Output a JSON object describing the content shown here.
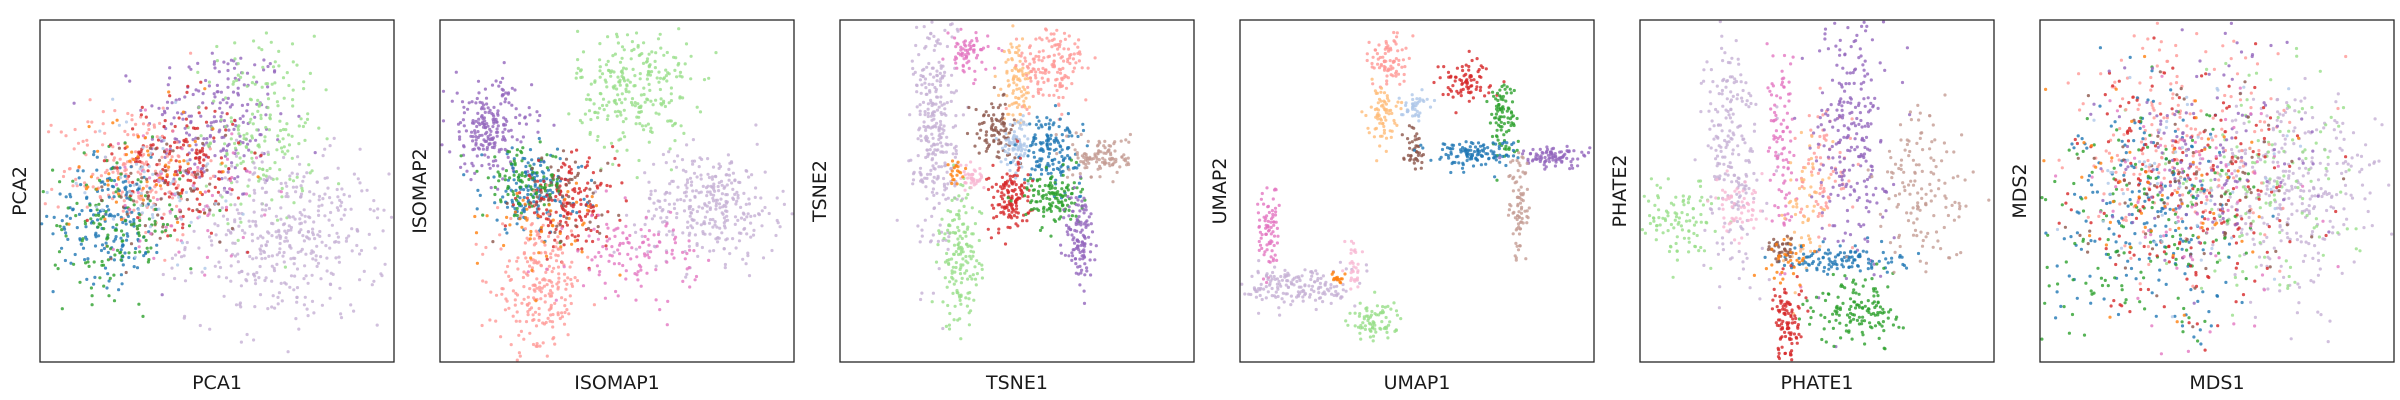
{
  "figure": {
    "palette": [
      "#1f77b4",
      "#aec7e8",
      "#ff7f0e",
      "#ffbb78",
      "#2ca02c",
      "#98df8a",
      "#d62728",
      "#ff9896",
      "#9467bd",
      "#c5b0d5",
      "#8c564b",
      "#c49c94",
      "#e377c2",
      "#f7b6d2"
    ]
  },
  "chart_data": [
    {
      "type": "scatter",
      "method": "PCA",
      "xlabel": "PCA1",
      "ylabel": "PCA2",
      "ticks": "none",
      "grid": false,
      "legend": "none",
      "xlim": [
        0,
        1
      ],
      "ylim": [
        0,
        1
      ],
      "clusters": [
        {
          "color": "#9467bd",
          "cx": 0.5,
          "cy": 0.7,
          "sx": 0.1,
          "sy": 0.12,
          "n": 220
        },
        {
          "color": "#98df8a",
          "cx": 0.62,
          "cy": 0.68,
          "sx": 0.08,
          "sy": 0.14,
          "n": 200
        },
        {
          "color": "#c5b0d5",
          "cx": 0.7,
          "cy": 0.36,
          "sx": 0.14,
          "sy": 0.12,
          "n": 420
        },
        {
          "color": "#ff9896",
          "cx": 0.26,
          "cy": 0.56,
          "sx": 0.1,
          "sy": 0.1,
          "n": 200
        },
        {
          "color": "#1f77b4",
          "cx": 0.2,
          "cy": 0.42,
          "sx": 0.08,
          "sy": 0.09,
          "n": 180
        },
        {
          "color": "#2ca02c",
          "cx": 0.22,
          "cy": 0.4,
          "sx": 0.09,
          "sy": 0.1,
          "n": 140
        },
        {
          "color": "#d62728",
          "cx": 0.4,
          "cy": 0.58,
          "sx": 0.09,
          "sy": 0.09,
          "n": 160
        },
        {
          "color": "#ff7f0e",
          "cx": 0.3,
          "cy": 0.55,
          "sx": 0.11,
          "sy": 0.1,
          "n": 60
        },
        {
          "color": "#8c564b",
          "cx": 0.36,
          "cy": 0.5,
          "sx": 0.1,
          "sy": 0.09,
          "n": 60
        },
        {
          "color": "#e377c2",
          "cx": 0.4,
          "cy": 0.5,
          "sx": 0.11,
          "sy": 0.1,
          "n": 60
        },
        {
          "color": "#aec7e8",
          "cx": 0.32,
          "cy": 0.52,
          "sx": 0.1,
          "sy": 0.1,
          "n": 60
        }
      ]
    },
    {
      "type": "scatter",
      "method": "ISOMAP",
      "xlabel": "ISOMAP1",
      "ylabel": "ISOMAP2",
      "ticks": "none",
      "grid": false,
      "legend": "none",
      "xlim": [
        0,
        1
      ],
      "ylim": [
        0,
        1
      ],
      "clusters": [
        {
          "color": "#98df8a",
          "cx": 0.55,
          "cy": 0.8,
          "sx": 0.08,
          "sy": 0.09,
          "n": 260
        },
        {
          "color": "#c5b0d5",
          "cx": 0.76,
          "cy": 0.46,
          "sx": 0.1,
          "sy": 0.08,
          "n": 320
        },
        {
          "color": "#9467bd",
          "cx": 0.14,
          "cy": 0.68,
          "sx": 0.06,
          "sy": 0.07,
          "n": 220
        },
        {
          "color": "#1f77b4",
          "cx": 0.26,
          "cy": 0.5,
          "sx": 0.07,
          "sy": 0.06,
          "n": 160
        },
        {
          "color": "#d62728",
          "cx": 0.36,
          "cy": 0.46,
          "sx": 0.07,
          "sy": 0.06,
          "n": 160
        },
        {
          "color": "#2ca02c",
          "cx": 0.24,
          "cy": 0.52,
          "sx": 0.06,
          "sy": 0.05,
          "n": 100
        },
        {
          "color": "#ff9896",
          "cx": 0.28,
          "cy": 0.22,
          "sx": 0.06,
          "sy": 0.1,
          "n": 240
        },
        {
          "color": "#e377c2",
          "cx": 0.55,
          "cy": 0.32,
          "sx": 0.09,
          "sy": 0.06,
          "n": 120
        },
        {
          "color": "#ff7f0e",
          "cx": 0.3,
          "cy": 0.4,
          "sx": 0.08,
          "sy": 0.07,
          "n": 50
        },
        {
          "color": "#8c564b",
          "cx": 0.34,
          "cy": 0.5,
          "sx": 0.08,
          "sy": 0.06,
          "n": 50
        }
      ]
    },
    {
      "type": "scatter",
      "method": "TSNE",
      "xlabel": "TSNE1",
      "ylabel": "TSNE2",
      "ticks": "none",
      "grid": false,
      "legend": "none",
      "xlim": [
        0,
        1
      ],
      "ylim": [
        0,
        1
      ],
      "clusters": [
        {
          "color": "#c5b0d5",
          "cx": 0.27,
          "cy": 0.68,
          "sx": 0.03,
          "sy": 0.18,
          "n": 300
        },
        {
          "color": "#98df8a",
          "cx": 0.34,
          "cy": 0.3,
          "sx": 0.03,
          "sy": 0.1,
          "n": 160
        },
        {
          "color": "#e377c2",
          "cx": 0.36,
          "cy": 0.9,
          "sx": 0.03,
          "sy": 0.03,
          "n": 70
        },
        {
          "color": "#ffbb78",
          "cx": 0.5,
          "cy": 0.82,
          "sx": 0.02,
          "sy": 0.06,
          "n": 90
        },
        {
          "color": "#ff9896",
          "cx": 0.6,
          "cy": 0.86,
          "sx": 0.05,
          "sy": 0.06,
          "n": 150
        },
        {
          "color": "#8c564b",
          "cx": 0.44,
          "cy": 0.68,
          "sx": 0.03,
          "sy": 0.04,
          "n": 90
        },
        {
          "color": "#aec7e8",
          "cx": 0.5,
          "cy": 0.64,
          "sx": 0.02,
          "sy": 0.04,
          "n": 80
        },
        {
          "color": "#1f77b4",
          "cx": 0.6,
          "cy": 0.62,
          "sx": 0.04,
          "sy": 0.05,
          "n": 150
        },
        {
          "color": "#d62728",
          "cx": 0.48,
          "cy": 0.48,
          "sx": 0.03,
          "sy": 0.05,
          "n": 130
        },
        {
          "color": "#2ca02c",
          "cx": 0.6,
          "cy": 0.48,
          "sx": 0.04,
          "sy": 0.04,
          "n": 130
        },
        {
          "color": "#c49c94",
          "cx": 0.74,
          "cy": 0.6,
          "sx": 0.04,
          "sy": 0.03,
          "n": 110
        },
        {
          "color": "#9467bd",
          "cx": 0.68,
          "cy": 0.36,
          "sx": 0.02,
          "sy": 0.08,
          "n": 120
        },
        {
          "color": "#f7b6d2",
          "cx": 0.37,
          "cy": 0.54,
          "sx": 0.02,
          "sy": 0.02,
          "n": 40
        },
        {
          "color": "#ff7f0e",
          "cx": 0.33,
          "cy": 0.56,
          "sx": 0.01,
          "sy": 0.02,
          "n": 20
        }
      ]
    },
    {
      "type": "scatter",
      "method": "UMAP",
      "xlabel": "UMAP1",
      "ylabel": "UMAP2",
      "ticks": "none",
      "grid": false,
      "legend": "none",
      "xlim": [
        0,
        1
      ],
      "ylim": [
        0,
        1
      ],
      "clusters": [
        {
          "color": "#ff9896",
          "cx": 0.42,
          "cy": 0.88,
          "sx": 0.025,
          "sy": 0.04,
          "n": 80
        },
        {
          "color": "#ffbb78",
          "cx": 0.4,
          "cy": 0.73,
          "sx": 0.02,
          "sy": 0.04,
          "n": 70
        },
        {
          "color": "#aec7e8",
          "cx": 0.49,
          "cy": 0.75,
          "sx": 0.02,
          "sy": 0.02,
          "n": 40
        },
        {
          "color": "#8c564b",
          "cx": 0.49,
          "cy": 0.63,
          "sx": 0.015,
          "sy": 0.03,
          "n": 40
        },
        {
          "color": "#d62728",
          "cx": 0.64,
          "cy": 0.82,
          "sx": 0.04,
          "sy": 0.03,
          "n": 80
        },
        {
          "color": "#2ca02c",
          "cx": 0.74,
          "cy": 0.72,
          "sx": 0.02,
          "sy": 0.06,
          "n": 90
        },
        {
          "color": "#1f77b4",
          "cx": 0.66,
          "cy": 0.61,
          "sx": 0.06,
          "sy": 0.02,
          "n": 120
        },
        {
          "color": "#9467bd",
          "cx": 0.88,
          "cy": 0.6,
          "sx": 0.05,
          "sy": 0.015,
          "n": 90
        },
        {
          "color": "#c49c94",
          "cx": 0.79,
          "cy": 0.45,
          "sx": 0.015,
          "sy": 0.08,
          "n": 80
        },
        {
          "color": "#e377c2",
          "cx": 0.08,
          "cy": 0.38,
          "sx": 0.015,
          "sy": 0.07,
          "n": 80
        },
        {
          "color": "#c5b0d5",
          "cx": 0.17,
          "cy": 0.22,
          "sx": 0.08,
          "sy": 0.03,
          "n": 170
        },
        {
          "color": "#98df8a",
          "cx": 0.38,
          "cy": 0.12,
          "sx": 0.04,
          "sy": 0.03,
          "n": 80
        },
        {
          "color": "#f7b6d2",
          "cx": 0.32,
          "cy": 0.28,
          "sx": 0.01,
          "sy": 0.04,
          "n": 30
        },
        {
          "color": "#ff7f0e",
          "cx": 0.28,
          "cy": 0.24,
          "sx": 0.01,
          "sy": 0.01,
          "n": 15
        }
      ]
    },
    {
      "type": "scatter",
      "method": "PHATE",
      "xlabel": "PHATE1",
      "ylabel": "PHATE2",
      "ticks": "none",
      "grid": false,
      "legend": "none",
      "xlim": [
        0,
        1
      ],
      "ylim": [
        0,
        1
      ],
      "clusters": [
        {
          "color": "#c5b0d5",
          "cx": 0.26,
          "cy": 0.62,
          "sx": 0.04,
          "sy": 0.18,
          "n": 220
        },
        {
          "color": "#98df8a",
          "cx": 0.1,
          "cy": 0.42,
          "sx": 0.06,
          "sy": 0.06,
          "n": 110
        },
        {
          "color": "#e377c2",
          "cx": 0.4,
          "cy": 0.62,
          "sx": 0.02,
          "sy": 0.14,
          "n": 100
        },
        {
          "color": "#f7b6d2",
          "cx": 0.28,
          "cy": 0.44,
          "sx": 0.04,
          "sy": 0.04,
          "n": 60
        },
        {
          "color": "#ff9896",
          "cx": 0.52,
          "cy": 0.55,
          "sx": 0.04,
          "sy": 0.12,
          "n": 80
        },
        {
          "color": "#ffbb78",
          "cx": 0.46,
          "cy": 0.45,
          "sx": 0.03,
          "sy": 0.1,
          "n": 60
        },
        {
          "color": "#9467bd",
          "cx": 0.6,
          "cy": 0.7,
          "sx": 0.05,
          "sy": 0.2,
          "n": 260
        },
        {
          "color": "#1f77b4",
          "cx": 0.56,
          "cy": 0.3,
          "sx": 0.09,
          "sy": 0.02,
          "n": 120
        },
        {
          "color": "#2ca02c",
          "cx": 0.62,
          "cy": 0.15,
          "sx": 0.06,
          "sy": 0.05,
          "n": 140
        },
        {
          "color": "#d62728",
          "cx": 0.42,
          "cy": 0.12,
          "sx": 0.025,
          "sy": 0.07,
          "n": 110
        },
        {
          "color": "#c49c94",
          "cx": 0.8,
          "cy": 0.5,
          "sx": 0.07,
          "sy": 0.12,
          "n": 140
        },
        {
          "color": "#8c564b",
          "cx": 0.4,
          "cy": 0.33,
          "sx": 0.02,
          "sy": 0.02,
          "n": 40
        },
        {
          "color": "#ff7f0e",
          "cx": 0.42,
          "cy": 0.3,
          "sx": 0.03,
          "sy": 0.03,
          "n": 30
        }
      ]
    },
    {
      "type": "scatter",
      "method": "MDS",
      "xlabel": "MDS1",
      "ylabel": "MDS2",
      "ticks": "none",
      "grid": false,
      "legend": "none",
      "xlim": [
        0,
        1
      ],
      "ylim": [
        0,
        1
      ],
      "clusters": [
        {
          "color": "#c5b0d5",
          "cx": 0.72,
          "cy": 0.5,
          "sx": 0.12,
          "sy": 0.15,
          "n": 320
        },
        {
          "color": "#98df8a",
          "cx": 0.62,
          "cy": 0.52,
          "sx": 0.14,
          "sy": 0.16,
          "n": 140
        },
        {
          "color": "#ff9896",
          "cx": 0.38,
          "cy": 0.62,
          "sx": 0.15,
          "sy": 0.16,
          "n": 220
        },
        {
          "color": "#1f77b4",
          "cx": 0.32,
          "cy": 0.42,
          "sx": 0.15,
          "sy": 0.17,
          "n": 200
        },
        {
          "color": "#2ca02c",
          "cx": 0.3,
          "cy": 0.4,
          "sx": 0.15,
          "sy": 0.17,
          "n": 160
        },
        {
          "color": "#d62728",
          "cx": 0.42,
          "cy": 0.52,
          "sx": 0.16,
          "sy": 0.18,
          "n": 200
        },
        {
          "color": "#9467bd",
          "cx": 0.48,
          "cy": 0.62,
          "sx": 0.15,
          "sy": 0.16,
          "n": 140
        },
        {
          "color": "#8c564b",
          "cx": 0.4,
          "cy": 0.5,
          "sx": 0.16,
          "sy": 0.17,
          "n": 80
        },
        {
          "color": "#e377c2",
          "cx": 0.44,
          "cy": 0.44,
          "sx": 0.16,
          "sy": 0.17,
          "n": 80
        },
        {
          "color": "#ff7f0e",
          "cx": 0.36,
          "cy": 0.52,
          "sx": 0.16,
          "sy": 0.17,
          "n": 60
        },
        {
          "color": "#aec7e8",
          "cx": 0.4,
          "cy": 0.56,
          "sx": 0.16,
          "sy": 0.17,
          "n": 60
        }
      ]
    }
  ]
}
